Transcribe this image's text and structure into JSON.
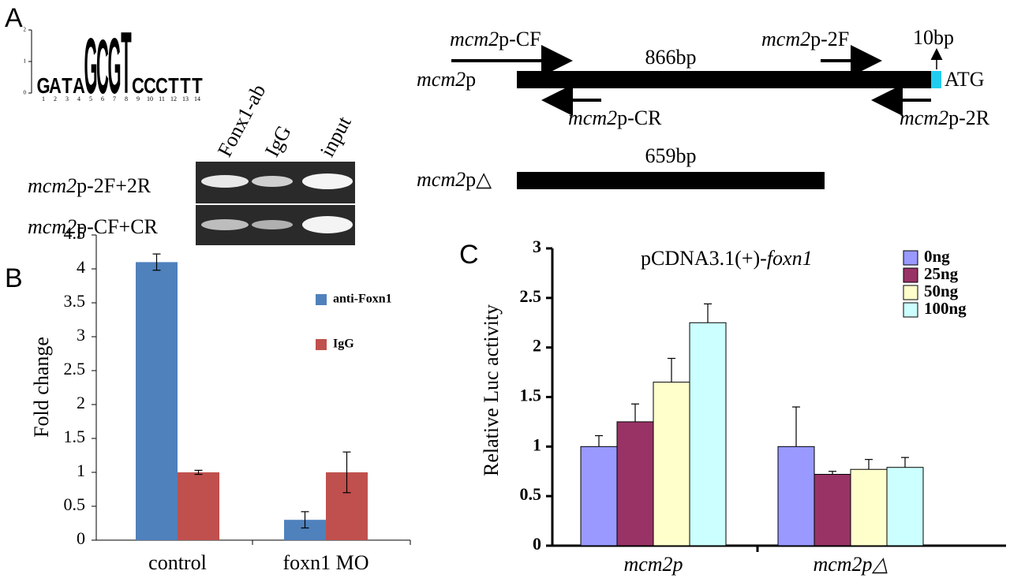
{
  "panel_labels": [
    "A",
    "B",
    "C"
  ],
  "motif": {
    "letters": [
      "G",
      "A",
      "T",
      "A",
      "G",
      "C",
      "G",
      "T",
      "C",
      "C",
      "C",
      "T",
      "T",
      "T"
    ],
    "heights": [
      0.5,
      0.5,
      0.5,
      0.5,
      1.8,
      1.75,
      1.8,
      2.0,
      0.5,
      0.5,
      0.5,
      0.5,
      0.5,
      0.5
    ],
    "colors": [
      "#222222",
      "#222222",
      "#222222",
      "#222222",
      "#f0a020",
      "#2030c0",
      "#f0a020",
      "#20a040",
      "#222222",
      "#222222",
      "#222222",
      "#222222",
      "#222222",
      "#222222"
    ],
    "positions": [
      1,
      2,
      3,
      4,
      5,
      6,
      7,
      8,
      9,
      10,
      11,
      12,
      13,
      14
    ],
    "ylim": [
      0,
      2
    ],
    "yticks": [
      0,
      1,
      2
    ]
  },
  "gel": {
    "lanes": [
      "Fonx1-ab",
      "IgG",
      "input"
    ],
    "rows": [
      [
        {
          "text": "mcm2",
          "italic": true
        },
        {
          "text": "p-2F+2R"
        }
      ],
      [
        {
          "text": "mcm2",
          "italic": true
        },
        {
          "text": "p-CF+CR"
        }
      ]
    ]
  },
  "promoter": {
    "full_label": [
      {
        "text": "mcm2",
        "italic": true
      },
      {
        "text": "p"
      }
    ],
    "delta_label": [
      {
        "text": "mcm2",
        "italic": true
      },
      {
        "text": "p△"
      }
    ],
    "full_length": "866bp",
    "delta_length": "659bp",
    "tail_length": "10bp",
    "start": "ATG",
    "primers": [
      [
        {
          "text": "mcm2",
          "italic": true
        },
        {
          "text": "p-CF"
        }
      ],
      [
        {
          "text": "mcm2",
          "italic": true
        },
        {
          "text": "p-2F"
        }
      ],
      [
        {
          "text": "mcm2",
          "italic": true
        },
        {
          "text": "p-CR"
        }
      ],
      [
        {
          "text": "mcm2",
          "italic": true
        },
        {
          "text": "p-2R"
        }
      ]
    ]
  },
  "chart_data": [
    {
      "type": "bar",
      "ylabel": "Fold change",
      "categories": [
        "control",
        "foxn1 MO"
      ],
      "ylim": [
        0,
        4.5
      ],
      "yticks": [
        0,
        0.5,
        1,
        1.5,
        2,
        2.5,
        3,
        3.5,
        4,
        4.5
      ],
      "error_style": "both",
      "bar_outline": false,
      "legend": "upper right",
      "series": [
        {
          "name": "anti-Foxn1",
          "color": "#4f81bd",
          "values": [
            4.1,
            0.3
          ],
          "errors": [
            0.12,
            0.12
          ]
        },
        {
          "name": "IgG",
          "color": "#c0504d",
          "values": [
            1.0,
            1.0
          ],
          "errors": [
            0.03,
            0.3
          ]
        }
      ]
    },
    {
      "type": "bar",
      "ylabel": "Relative Luc activity",
      "legend_title": [
        {
          "text": "pCDNA3.1(+)-"
        },
        {
          "text": "foxn1",
          "italic": true
        }
      ],
      "categories": [
        "mcm2p",
        "mcm2p△"
      ],
      "ylim": [
        0,
        3
      ],
      "yticks": [
        0,
        0.5,
        1,
        1.5,
        2,
        2.5,
        3
      ],
      "error_style": "up",
      "bar_outline": true,
      "legend": "upper right",
      "series": [
        {
          "name": "0ng",
          "color": "#9999ff",
          "values": [
            1.0,
            1.0
          ],
          "errors": [
            0.11,
            0.4
          ]
        },
        {
          "name": "25ng",
          "color": "#993366",
          "values": [
            1.25,
            0.72
          ],
          "errors": [
            0.18,
            0.03
          ]
        },
        {
          "name": "50ng",
          "color": "#ffffcc",
          "values": [
            1.65,
            0.77
          ],
          "errors": [
            0.24,
            0.1
          ]
        },
        {
          "name": "100ng",
          "color": "#ccffff",
          "values": [
            2.25,
            0.79
          ],
          "errors": [
            0.19,
            0.1
          ]
        }
      ]
    }
  ]
}
